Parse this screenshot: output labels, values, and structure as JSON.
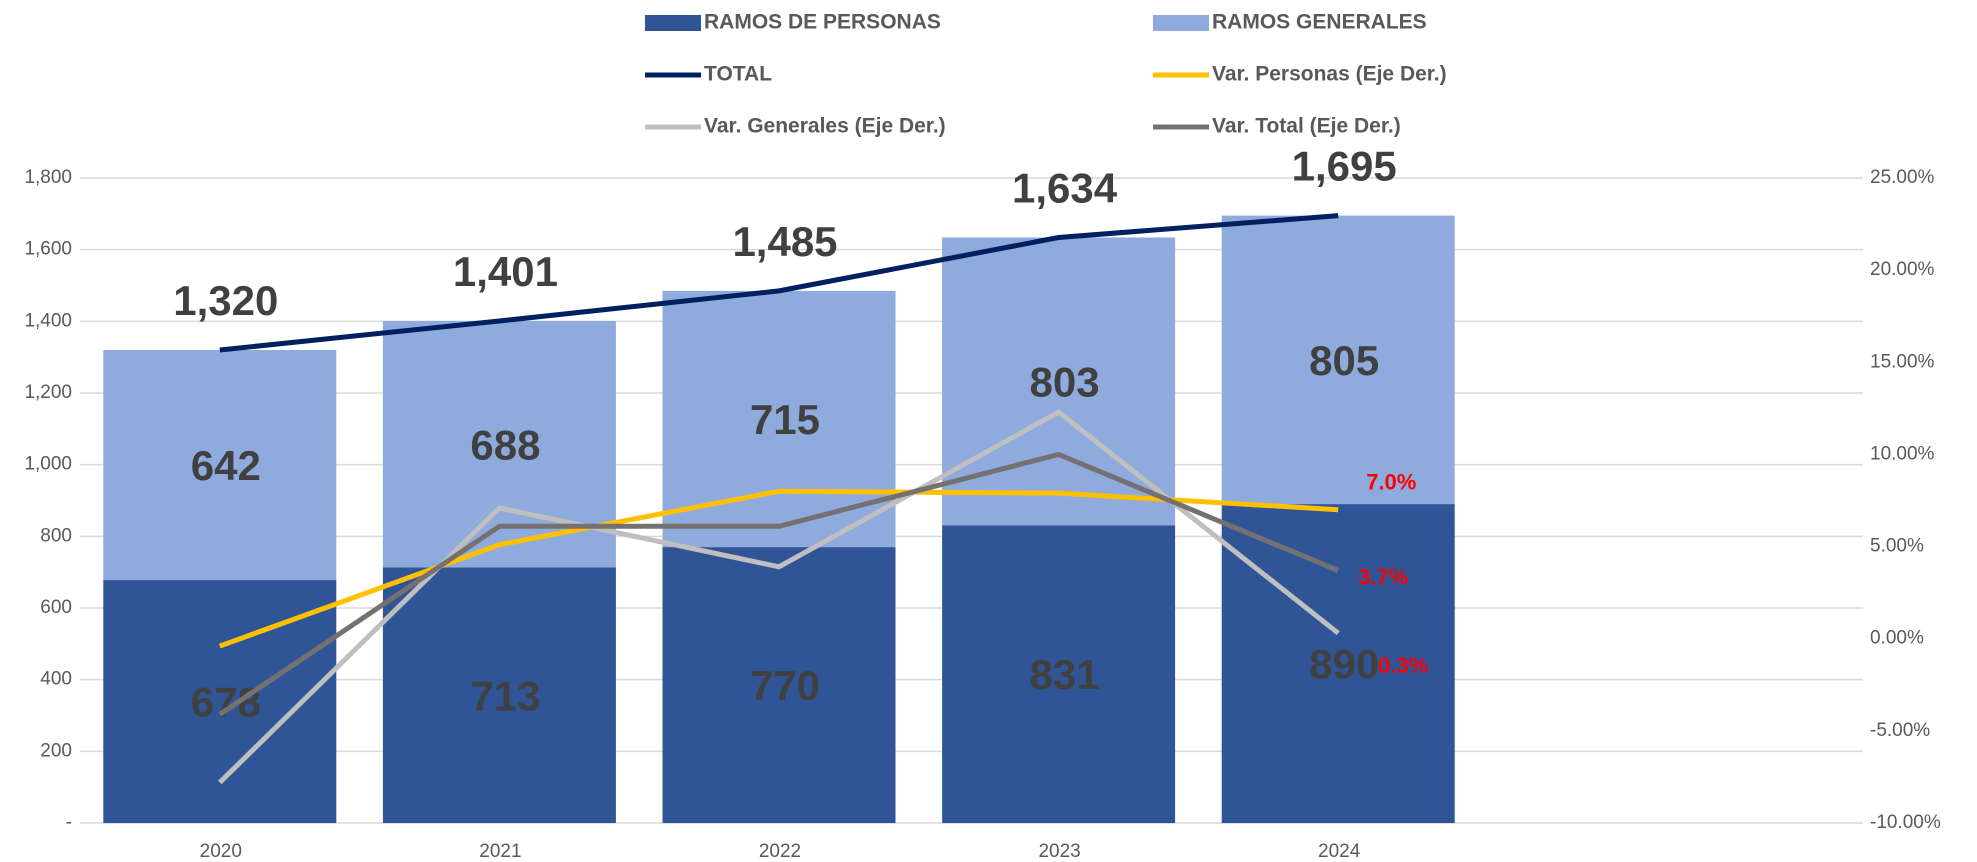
{
  "chart_data": {
    "type": "bar",
    "stacked": true,
    "categories": [
      "2020",
      "2021",
      "2022",
      "2023",
      "2024"
    ],
    "ylim": [
      0,
      1800
    ],
    "yticks": [
      {
        "value": 0,
        "label": "-"
      },
      200,
      400,
      600,
      800,
      {
        "value": 1000,
        "label": "1,000"
      },
      {
        "value": 1200,
        "label": "1,200"
      },
      {
        "value": 1400,
        "label": "1,400"
      },
      {
        "value": 1600,
        "label": "1,600"
      },
      {
        "value": 1800,
        "label": "1,800"
      }
    ],
    "y2lim": [
      -10,
      25
    ],
    "y2ticks": [
      {
        "value": -10,
        "label": "-10.00%"
      },
      {
        "value": -5,
        "label": "-5.00%"
      },
      {
        "value": 0,
        "label": "0.00%"
      },
      {
        "value": 5,
        "label": "5.00%"
      },
      {
        "value": 10,
        "label": "10.00%"
      },
      {
        "value": 15,
        "label": "15.00%"
      },
      {
        "value": 20,
        "label": "20.00%"
      },
      {
        "value": 25,
        "label": "25.00%"
      }
    ],
    "grid": true,
    "series": [
      {
        "name": "RAMOS DE PERSONAS",
        "type": "bar",
        "color": "#2f5597",
        "values": [
          678,
          713,
          770,
          831,
          890
        ]
      },
      {
        "name": "RAMOS GENERALES",
        "type": "bar",
        "color": "#8faadc",
        "values": [
          642,
          688,
          715,
          803,
          805
        ]
      },
      {
        "name": "TOTAL",
        "type": "line",
        "color": "#002060",
        "values": [
          1320,
          1401,
          1485,
          1634,
          1695
        ],
        "value_labels": [
          "1,320",
          "1,401",
          "1,485",
          "1,634",
          "1,695"
        ]
      },
      {
        "name": "Var. Personas (Eje Der.)",
        "type": "line",
        "axis": "y2",
        "color": "#ffc000",
        "values": [
          -0.4,
          5.1,
          8.0,
          7.9,
          7.0
        ],
        "value_labels": [
          null,
          null,
          null,
          null,
          "7.0%"
        ]
      },
      {
        "name": "Var. Generales (Eje Der.)",
        "type": "line",
        "axis": "y2",
        "color": "#bfbfbf",
        "values": [
          -7.8,
          7.1,
          3.9,
          12.3,
          0.3
        ],
        "value_labels": [
          null,
          null,
          null,
          null,
          "0.3%"
        ]
      },
      {
        "name": "Var. Total  (Eje Der.)",
        "type": "line",
        "axis": "y2",
        "color": "#767171",
        "values": [
          -4.1,
          6.1,
          6.1,
          10.0,
          3.7
        ],
        "value_labels": [
          null,
          null,
          null,
          null,
          "3.7%"
        ]
      }
    ]
  }
}
